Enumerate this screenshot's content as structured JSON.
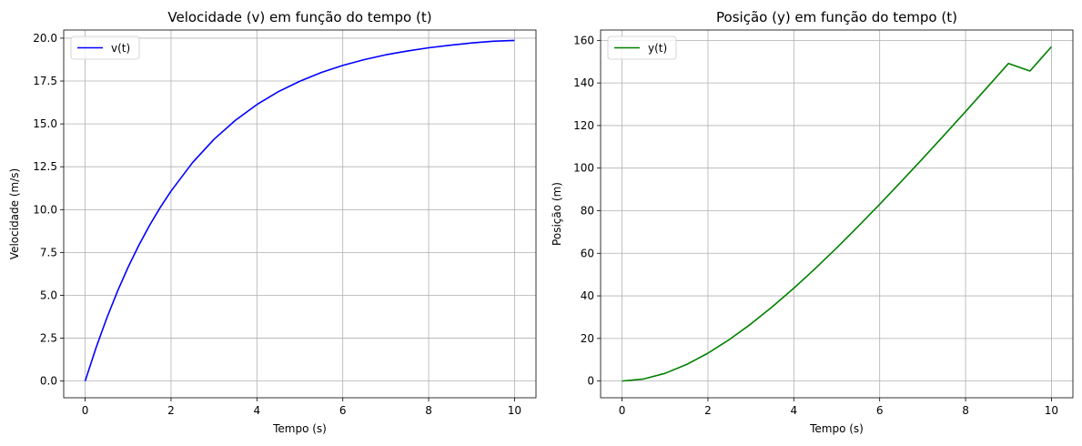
{
  "chart_data": [
    {
      "type": "line",
      "title": "Velocidade (v) em função do tempo (t)",
      "xlabel": "Tempo (s)",
      "ylabel": "Velocidade (m/s)",
      "xlim": [
        -0.5,
        10.5
      ],
      "ylim": [
        -0.975,
        20.475
      ],
      "x_ticks": [
        0,
        2,
        4,
        6,
        8,
        10
      ],
      "y_ticks": [
        0.0,
        2.5,
        5.0,
        7.5,
        10.0,
        12.5,
        15.0,
        17.5,
        20.0
      ],
      "x_tick_labels": [
        "0",
        "2",
        "4",
        "6",
        "8",
        "10"
      ],
      "y_tick_labels": [
        "0.0",
        "2.5",
        "5.0",
        "7.5",
        "10.0",
        "12.5",
        "15.0",
        "17.5",
        "20.0"
      ],
      "grid": true,
      "legend_position": "upper-left",
      "series": [
        {
          "name": "v(t)",
          "color": "#0000ff",
          "x": [
            0,
            0.25,
            0.5,
            0.75,
            1,
            1.25,
            1.5,
            1.75,
            2,
            2.5,
            3,
            3.5,
            4,
            4.5,
            5,
            5.5,
            6,
            6.5,
            7,
            7.5,
            8,
            8.5,
            9,
            9.5,
            10
          ],
          "y": [
            0,
            1.92,
            3.65,
            5.22,
            6.64,
            7.92,
            9.08,
            10.13,
            11.08,
            12.74,
            14.1,
            15.21,
            16.13,
            16.88,
            17.49,
            18.0,
            18.41,
            18.75,
            19.03,
            19.25,
            19.44,
            19.59,
            19.72,
            19.82,
            19.87
          ]
        }
      ]
    },
    {
      "type": "line",
      "title": "Posição (y) em função do tempo (t)",
      "xlabel": "Tempo (s)",
      "ylabel": "Posição (m)",
      "xlim": [
        -0.5,
        10.5
      ],
      "ylim": [
        -7.85,
        164.85
      ],
      "x_ticks": [
        0,
        2,
        4,
        6,
        8,
        10
      ],
      "y_ticks": [
        0,
        20,
        40,
        60,
        80,
        100,
        120,
        140,
        160
      ],
      "x_tick_labels": [
        "0",
        "2",
        "4",
        "6",
        "8",
        "10"
      ],
      "y_tick_labels": [
        "0",
        "20",
        "40",
        "60",
        "80",
        "100",
        "120",
        "140",
        "160"
      ],
      "grid": true,
      "legend_position": "upper-left",
      "series": [
        {
          "name": "y(t)",
          "color": "#008000",
          "x": [
            0,
            0.5,
            1,
            1.5,
            2,
            2.5,
            3,
            3.5,
            4,
            4.5,
            5,
            5.5,
            6,
            6.5,
            7,
            7.5,
            8,
            8.5,
            9,
            9.5,
            10
          ],
          "y": [
            0,
            0.95,
            3.61,
            7.73,
            13.09,
            19.5,
            26.81,
            34.89,
            43.6,
            52.86,
            62.56,
            72.63,
            83.0,
            93.63,
            104.45,
            115.45,
            126.58,
            137.83,
            149.16,
            160.5,
            157.0
          ]
        }
      ]
    }
  ]
}
